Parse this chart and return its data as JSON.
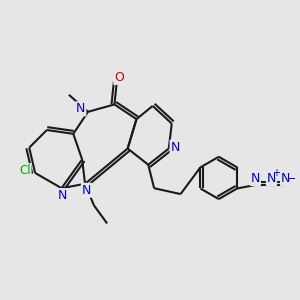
{
  "background_color": "#e6e6e6",
  "bond_color": "#1a1a1a",
  "n_color": "#0000cc",
  "o_color": "#cc0000",
  "cl_color": "#00aa00",
  "az_color": "#0000cc",
  "lw": 1.5,
  "figsize": [
    3.0,
    3.0
  ],
  "dpi": 100,
  "xlim": [
    0,
    10
  ],
  "ylim": [
    2,
    9
  ]
}
